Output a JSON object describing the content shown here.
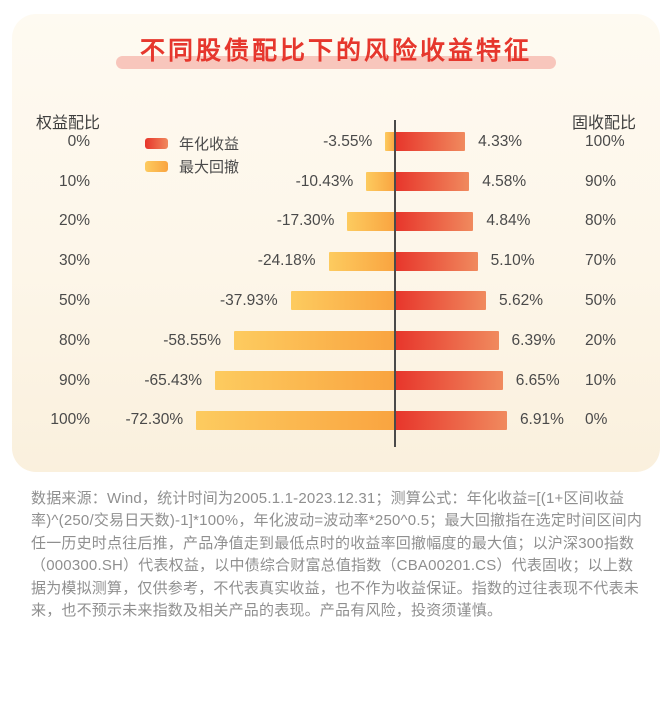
{
  "title": {
    "text": "不同股债配比下的风险收益特征"
  },
  "column_headers": {
    "left": "权益配比",
    "right": "固收配比"
  },
  "legend": {
    "return_label": "年化收益",
    "drawdown_label": "最大回撤"
  },
  "colors": {
    "title": "#e6372d",
    "title_highlight": "#f8c6bc",
    "return_bar_start": "#e7352b",
    "return_bar_end": "#f08a5e",
    "drawdown_bar_start": "#fdcb5f",
    "drawdown_bar_end": "#f9a440",
    "axis_line": "#4a4a4a",
    "card_background": "#fdf6e9",
    "footnote_text": "#8f8f8f"
  },
  "chart_data": {
    "type": "bar",
    "subtype": "diverging-horizontal",
    "title": "不同股债配比下的风险收益特征",
    "categories": [
      "0%",
      "10%",
      "20%",
      "30%",
      "50%",
      "80%",
      "90%",
      "100%"
    ],
    "categories_label": "权益配比",
    "right_categories": [
      "100%",
      "90%",
      "80%",
      "70%",
      "50%",
      "20%",
      "10%",
      "0%"
    ],
    "right_categories_label": "固收配比",
    "legend_position": "top-left",
    "grid": false,
    "series": [
      {
        "name": "年化收益",
        "unit": "%",
        "direction": "right",
        "values": [
          4.33,
          4.58,
          4.84,
          5.1,
          5.62,
          6.39,
          6.65,
          6.91
        ]
      },
      {
        "name": "最大回撤",
        "unit": "%",
        "direction": "left",
        "values": [
          -3.55,
          -10.43,
          -17.3,
          -24.18,
          -37.93,
          -58.55,
          -65.43,
          -72.3
        ]
      }
    ],
    "rows": [
      {
        "equity": "0%",
        "drawdown_label": "-3.55%",
        "drawdown_pct": 3.55,
        "return_label": "4.33%",
        "return_pct": 4.33,
        "fixed": "100%"
      },
      {
        "equity": "10%",
        "drawdown_label": "-10.43%",
        "drawdown_pct": 10.43,
        "return_label": "4.58%",
        "return_pct": 4.58,
        "fixed": "90%"
      },
      {
        "equity": "20%",
        "drawdown_label": "-17.30%",
        "drawdown_pct": 17.3,
        "return_label": "4.84%",
        "return_pct": 4.84,
        "fixed": "80%"
      },
      {
        "equity": "30%",
        "drawdown_label": "-24.18%",
        "drawdown_pct": 24.18,
        "return_label": "5.10%",
        "return_pct": 5.1,
        "fixed": "70%"
      },
      {
        "equity": "50%",
        "drawdown_label": "-37.93%",
        "drawdown_pct": 37.93,
        "return_label": "5.62%",
        "return_pct": 5.62,
        "fixed": "50%"
      },
      {
        "equity": "80%",
        "drawdown_label": "-58.55%",
        "drawdown_pct": 58.55,
        "return_label": "6.39%",
        "return_pct": 6.39,
        "fixed": "20%"
      },
      {
        "equity": "90%",
        "drawdown_label": "-65.43%",
        "drawdown_pct": 65.43,
        "return_label": "6.65%",
        "return_pct": 6.65,
        "fixed": "10%"
      },
      {
        "equity": "100%",
        "drawdown_label": "-72.30%",
        "drawdown_pct": 72.3,
        "return_label": "6.91%",
        "return_pct": 6.91,
        "fixed": "0%"
      }
    ]
  },
  "footnote": {
    "text": "数据来源：Wind，统计时间为2005.1.1-2023.12.31；测算公式：年化收益=[(1+区间收益率)^(250/交易日天数)-1]*100%，年化波动=波动率*250^0.5；最大回撤指在选定时间区间内任一历史时点往后推，产品净值走到最低点时的收益率回撤幅度的最大值；以沪深300指数（000300.SH）代表权益，以中债综合财富总值指数（CBA00201.CS）代表固收；以上数据为模拟测算，仅供参考，不代表真实收益，也不作为收益保证。指数的过往表现不代表未来，也不预示未来指数及相关产品的表现。产品有风险，投资须谨慎。"
  }
}
